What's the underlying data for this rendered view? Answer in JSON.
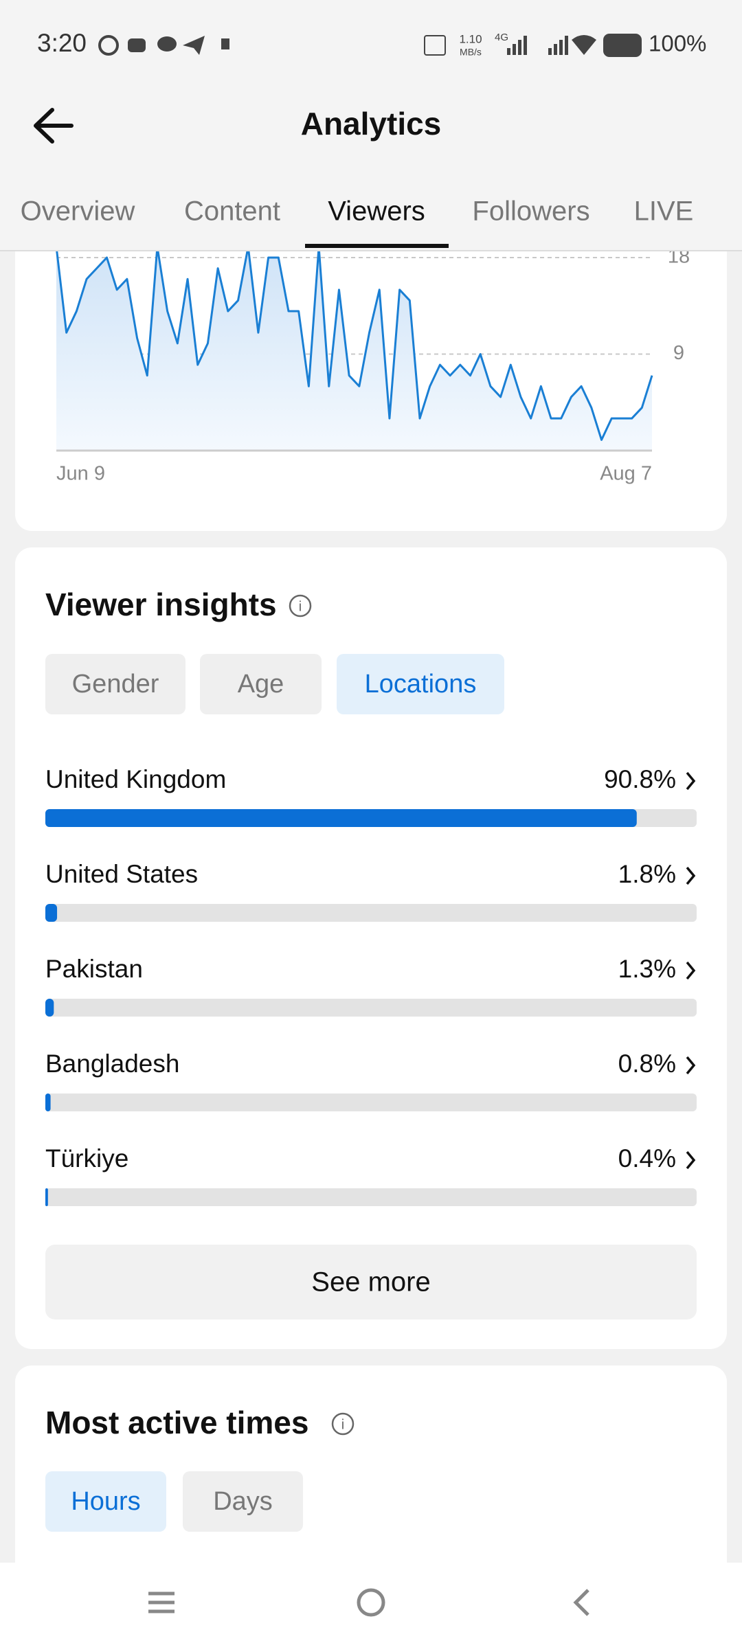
{
  "status_bar": {
    "time": "3:20",
    "speed": "1.10",
    "speed_unit": "MB/s",
    "network": "4G",
    "battery": "100%"
  },
  "header": {
    "title": "Analytics"
  },
  "tabs": {
    "items": [
      "Overview",
      "Content",
      "Viewers",
      "Followers",
      "LIVE"
    ],
    "active": 2
  },
  "chart_data": [
    {
      "type": "line",
      "color": "#1a7fd4",
      "grid": true,
      "categories": [
        "Jun 9",
        null,
        null,
        null,
        null,
        null,
        null,
        null,
        null,
        null,
        null,
        null,
        null,
        null,
        null,
        null,
        null,
        null,
        null,
        null,
        null,
        null,
        null,
        null,
        null,
        null,
        null,
        null,
        null,
        null,
        null,
        null,
        null,
        null,
        null,
        null,
        null,
        null,
        null,
        null,
        null,
        null,
        null,
        null,
        null,
        null,
        null,
        null,
        null,
        null,
        null,
        null,
        null,
        null,
        null,
        null,
        null,
        null,
        null,
        "Aug 7"
      ],
      "values": [
        19,
        11,
        13,
        16,
        17,
        18,
        15,
        16,
        10.5,
        7,
        19,
        13,
        10,
        16,
        8,
        10,
        17,
        13,
        14,
        19,
        11,
        18,
        18,
        13,
        13,
        6,
        19,
        6,
        15,
        7,
        6,
        11,
        15,
        3,
        15,
        14,
        3,
        6,
        8,
        7,
        8,
        7,
        9,
        6,
        5,
        8,
        5,
        3,
        6,
        3,
        3,
        5,
        6,
        4,
        1,
        3,
        3,
        3,
        4,
        7
      ],
      "ylim": [
        0,
        18
      ],
      "yticks": [
        9,
        18
      ]
    },
    {
      "type": "hbar",
      "title": "Viewer insights",
      "color": "#0b6fd6",
      "categories": [
        "United Kingdom",
        "United States",
        "Pakistan",
        "Bangladesh",
        "Türkiye"
      ],
      "values": [
        90.8,
        1.8,
        1.3,
        0.8,
        0.4
      ],
      "value_labels": [
        "90.8%",
        "1.8%",
        "1.3%",
        "0.8%",
        "0.4%"
      ],
      "xlim": [
        0,
        100
      ]
    }
  ],
  "viewer_insights": {
    "filters": [
      "Gender",
      "Age",
      "Locations"
    ],
    "active": 2,
    "see_more": "See more"
  },
  "most_active_times": {
    "title": "Most active times",
    "filters": [
      "Hours",
      "Days"
    ],
    "active": 0
  }
}
